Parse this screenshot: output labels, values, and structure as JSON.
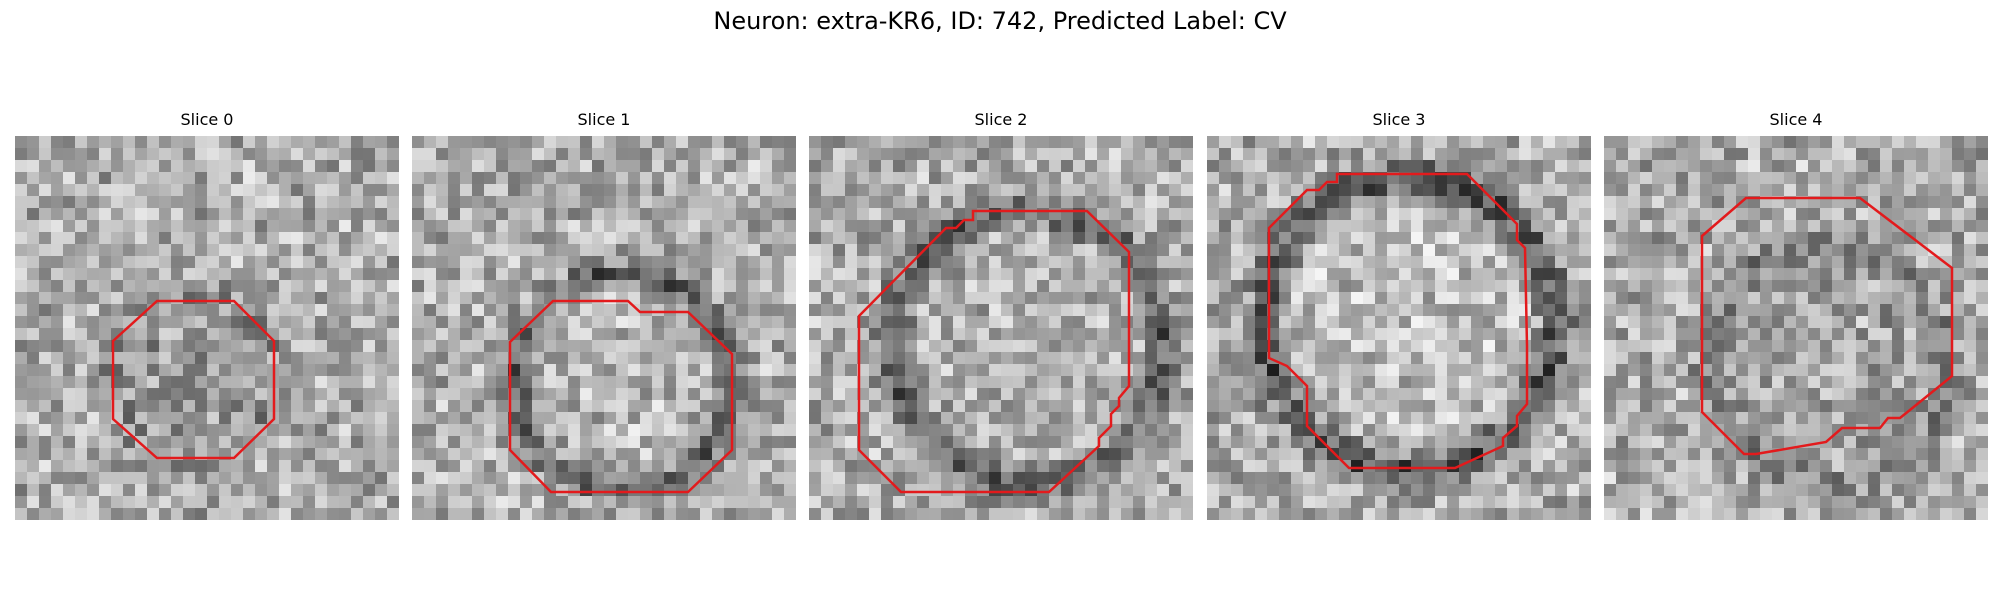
{
  "figure": {
    "title": "Neuron: extra-KR6, ID: 742, Predicted Label: CV",
    "contour_color": "#e31a1c"
  },
  "panels": [
    {
      "title": "Slice 0",
      "seed": 11,
      "ring_strength": 0.35,
      "interior_dark": 0.45
    },
    {
      "title": "Slice 1",
      "seed": 23,
      "ring_strength": 0.85,
      "interior_dark": -0.2
    },
    {
      "title": "Slice 2",
      "seed": 37,
      "ring_strength": 0.8,
      "interior_dark": -0.1
    },
    {
      "title": "Slice 3",
      "seed": 41,
      "ring_strength": 0.95,
      "interior_dark": -0.35
    },
    {
      "title": "Slice 4",
      "seed": 59,
      "ring_strength": 0.4,
      "interior_dark": 0.2
    }
  ]
}
